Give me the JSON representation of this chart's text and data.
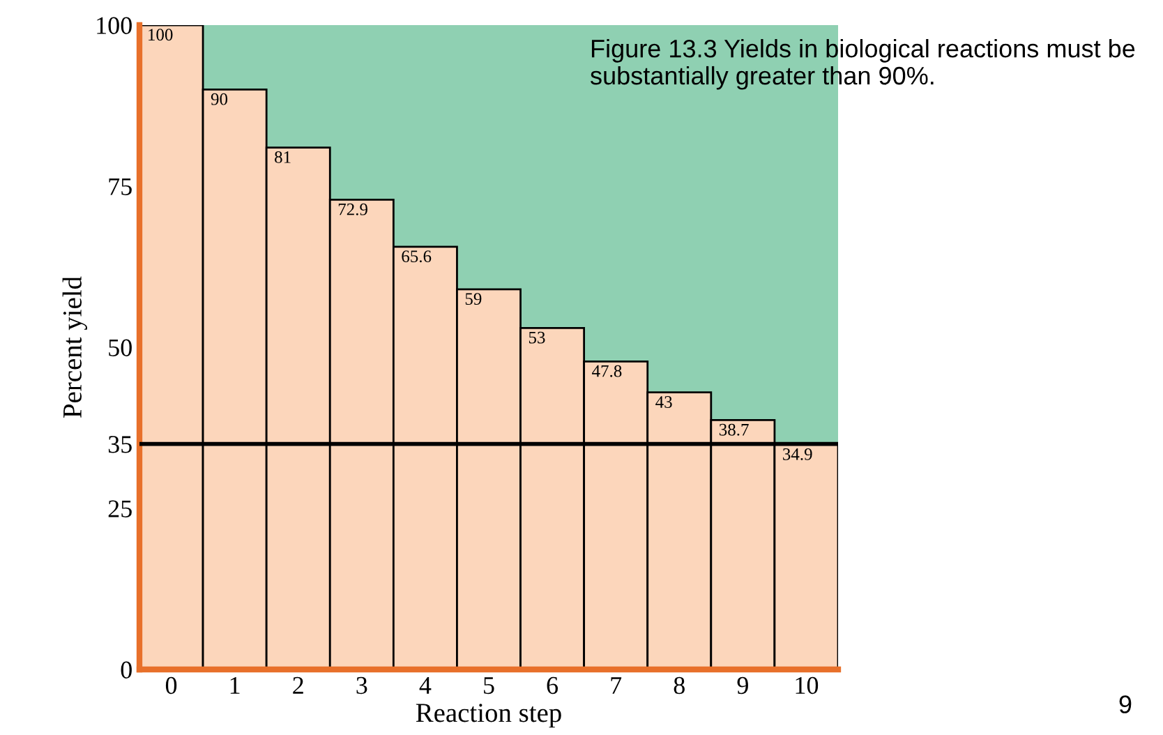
{
  "chart_data": {
    "type": "bar",
    "categories": [
      "0",
      "1",
      "2",
      "3",
      "4",
      "5",
      "6",
      "7",
      "8",
      "9",
      "10"
    ],
    "values": [
      100,
      90,
      81,
      72.9,
      65.6,
      59,
      53,
      47.8,
      43,
      38.7,
      34.9
    ],
    "color": "#fcd6bb",
    "data_labels": true,
    "xlabel": "Reaction step",
    "ylabel": "Percent yield",
    "ylim": [
      0,
      100
    ],
    "yticks": [
      0,
      25,
      35,
      50,
      75,
      100
    ],
    "ref_lines": [
      {
        "axis": "y",
        "value": 35,
        "color": "#000000"
      }
    ],
    "bands": [
      {
        "axis": "y",
        "from": 35,
        "to": 100,
        "color": "#8fd0b2"
      }
    ],
    "annotations": [
      "Figure 13.3 Yields in biological reactions must be substantially greater than 90%.",
      "9"
    ],
    "grid": false,
    "legend": false
  }
}
